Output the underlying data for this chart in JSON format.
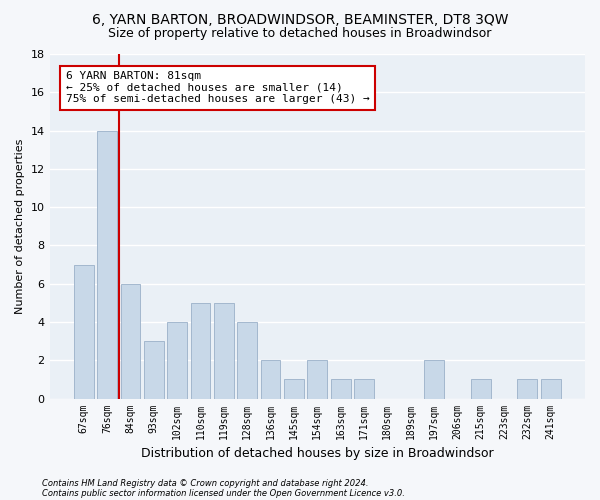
{
  "title": "6, YARN BARTON, BROADWINDSOR, BEAMINSTER, DT8 3QW",
  "subtitle": "Size of property relative to detached houses in Broadwindsor",
  "xlabel": "Distribution of detached houses by size in Broadwindsor",
  "ylabel": "Number of detached properties",
  "categories": [
    "67sqm",
    "76sqm",
    "84sqm",
    "93sqm",
    "102sqm",
    "110sqm",
    "119sqm",
    "128sqm",
    "136sqm",
    "145sqm",
    "154sqm",
    "163sqm",
    "171sqm",
    "180sqm",
    "189sqm",
    "197sqm",
    "206sqm",
    "215sqm",
    "223sqm",
    "232sqm",
    "241sqm"
  ],
  "values": [
    7,
    14,
    6,
    3,
    4,
    5,
    5,
    4,
    2,
    1,
    2,
    1,
    1,
    0,
    0,
    2,
    0,
    1,
    0,
    1,
    1
  ],
  "bar_color": "#c8d8e8",
  "bar_edge_color": "#9ab0c8",
  "red_line_x": 1.5,
  "annotation_text": "6 YARN BARTON: 81sqm\n← 25% of detached houses are smaller (14)\n75% of semi-detached houses are larger (43) →",
  "annotation_box_color": "#ffffff",
  "annotation_box_edge": "#cc0000",
  "ylim": [
    0,
    18
  ],
  "yticks": [
    0,
    2,
    4,
    6,
    8,
    10,
    12,
    14,
    16,
    18
  ],
  "footer1": "Contains HM Land Registry data © Crown copyright and database right 2024.",
  "footer2": "Contains public sector information licensed under the Open Government Licence v3.0.",
  "plot_bg_color": "#eaf0f6",
  "fig_bg_color": "#f5f7fa",
  "grid_color": "#ffffff",
  "title_fontsize": 10,
  "subtitle_fontsize": 9,
  "ylabel_fontsize": 8,
  "xlabel_fontsize": 9,
  "tick_fontsize": 7,
  "annotation_fontsize": 8,
  "footer_fontsize": 6
}
